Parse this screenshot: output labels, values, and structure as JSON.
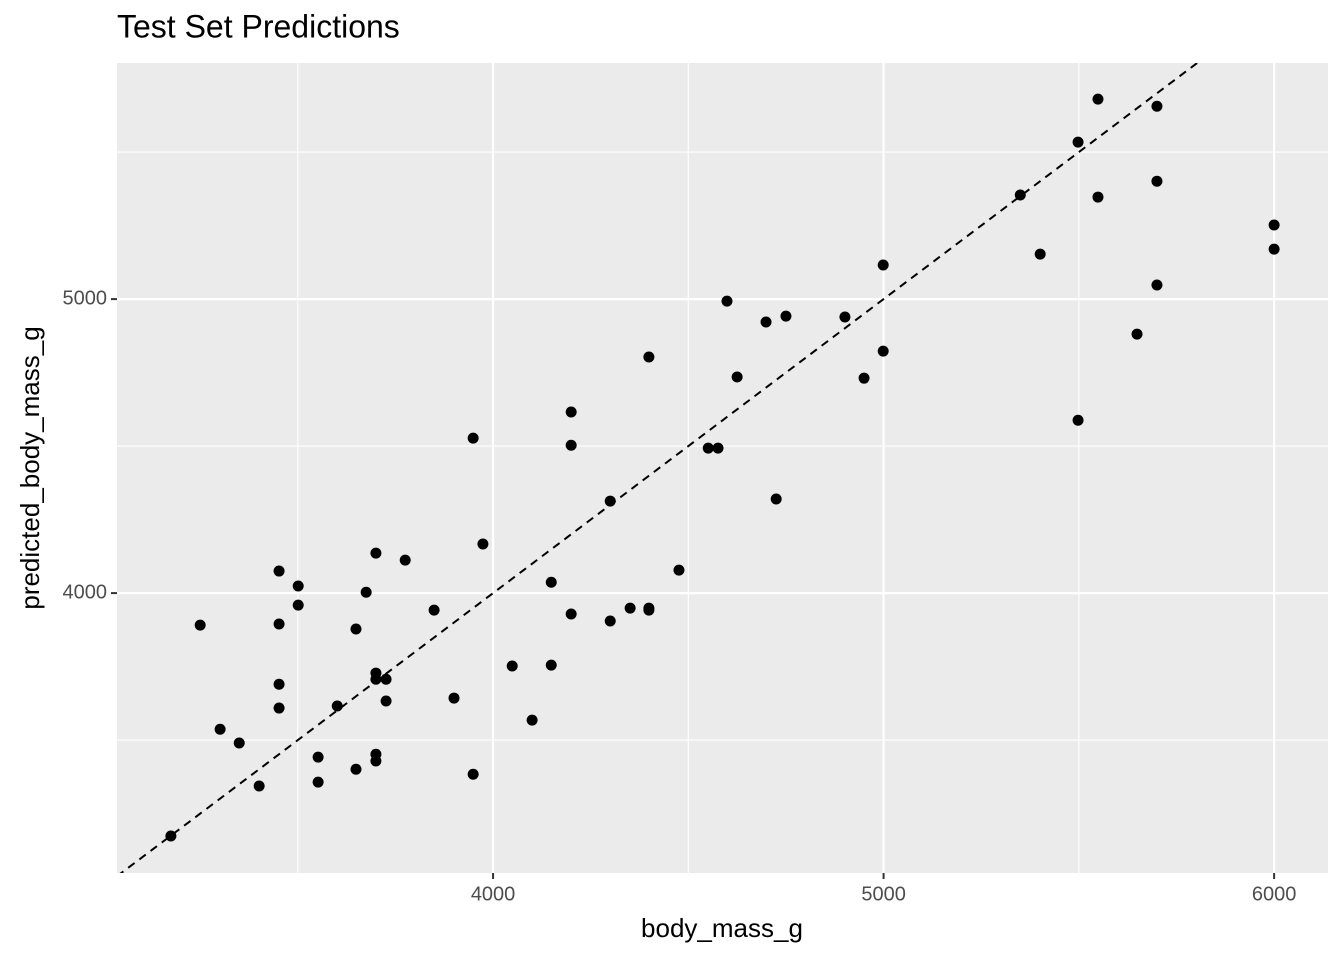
{
  "chart_data": {
    "type": "scatter",
    "title": "Test Set Predictions",
    "x_label": "body_mass_g",
    "y_label": "predicted_body_mass_g",
    "color": "#000000",
    "xlim": [
      3037,
      6138
    ],
    "ylim": [
      3048,
      5803
    ],
    "xticks": [
      4000,
      5000,
      6000
    ],
    "yticks": [
      4000,
      5000
    ],
    "x_minor_ticks": [
      3500,
      4500,
      5500
    ],
    "y_minor_ticks": [
      3500,
      4500,
      5500
    ],
    "grid": true,
    "identity_line": true,
    "x": [
      3175,
      3250,
      3301,
      3350,
      3401,
      3452,
      3452,
      3452,
      3452,
      3501,
      3501,
      3552,
      3552,
      3601,
      3649,
      3649,
      3675,
      3700,
      3700,
      3700,
      3700,
      3700,
      3726,
      3726,
      3775,
      3849,
      3900,
      3949,
      3949,
      3974,
      4049,
      4100,
      4149,
      4149,
      4200,
      4200,
      4200,
      4300,
      4300,
      4351,
      4399,
      4399,
      4399,
      4476,
      4551,
      4576,
      4599,
      4625,
      4699,
      4725,
      4750,
      4901,
      4950,
      4999,
      4999,
      5350,
      5401,
      5498,
      5498,
      5549,
      5549,
      5649,
      5700,
      5700,
      5700,
      6000,
      6000
    ],
    "values": [
      3174,
      3891,
      3537,
      3490,
      3344,
      4075,
      3895,
      3690,
      3609,
      4024,
      3959,
      3442,
      3357,
      3616,
      3878,
      3401,
      4003,
      4136,
      3728,
      3707,
      3452,
      3429,
      3707,
      3633,
      4112,
      3942,
      3643,
      4527,
      3384,
      4167,
      3752,
      3568,
      4037,
      3755,
      4616,
      4503,
      3929,
      4313,
      3905,
      3949,
      4803,
      3949,
      3942,
      4078,
      4493,
      4493,
      4993,
      4735,
      4922,
      4320,
      4942,
      4939,
      4731,
      5116,
      4823,
      5354,
      5153,
      5534,
      4588,
      5680,
      5347,
      4881,
      5656,
      5401,
      5048,
      5252,
      5170
    ]
  }
}
